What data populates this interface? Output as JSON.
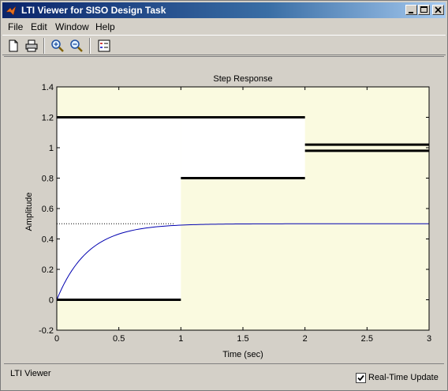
{
  "window": {
    "title": "LTI Viewer for SISO Design Task"
  },
  "menu": {
    "items": [
      {
        "label": "File"
      },
      {
        "label": "Edit"
      },
      {
        "label": "Window"
      },
      {
        "label": "Help"
      }
    ]
  },
  "toolbar": {
    "buttons": [
      "new-figure-icon",
      "print-icon",
      "zoom-in-icon",
      "zoom-out-icon",
      "legend-icon"
    ]
  },
  "plot": {
    "title": "Step Response",
    "xlabel": "Time (sec)",
    "ylabel": "Amplitude"
  },
  "chart_data": {
    "type": "line",
    "title": "Step Response",
    "xlabel": "Time (sec)",
    "ylabel": "Amplitude",
    "xlim": [
      0,
      3
    ],
    "ylim": [
      -0.2,
      1.4
    ],
    "x_ticks": [
      "0",
      "0.5",
      "1",
      "1.5",
      "2",
      "2.5",
      "3"
    ],
    "y_ticks": [
      "-0.2",
      "0",
      "0.2",
      "0.4",
      "0.6",
      "0.8",
      "1",
      "1.2",
      "1.4"
    ],
    "grid": false,
    "background_color": "#fafae0",
    "response_color": "#0000b0",
    "steady_state_value": 0.5,
    "time_constant": 0.25,
    "response_samples": [
      {
        "x": 0,
        "y": 0
      },
      {
        "x": 0.25,
        "y": 0.316
      },
      {
        "x": 0.5,
        "y": 0.432
      },
      {
        "x": 0.75,
        "y": 0.475
      },
      {
        "x": 1.0,
        "y": 0.491
      },
      {
        "x": 1.5,
        "y": 0.499
      },
      {
        "x": 2.0,
        "y": 0.5
      },
      {
        "x": 3.0,
        "y": 0.5
      }
    ],
    "constraint_segments": [
      {
        "x1": 0,
        "x2": 1,
        "y": 0
      },
      {
        "x1": 0,
        "x2": 2,
        "y": 1.2
      },
      {
        "x1": 1,
        "x2": 2,
        "y": 0.8
      },
      {
        "x1": 2,
        "x2": 3,
        "y": 1.02
      },
      {
        "x1": 2,
        "x2": 3,
        "y": 0.98
      }
    ],
    "white_regions": [
      {
        "x1": 0,
        "x2": 1,
        "y1": 0,
        "y2": 1.2
      },
      {
        "x1": 1,
        "x2": 2,
        "y1": 0.8,
        "y2": 1.2
      }
    ]
  },
  "status": {
    "label": "LTI Viewer",
    "realtime_label": "Real-Time Update",
    "realtime_checked": true
  }
}
